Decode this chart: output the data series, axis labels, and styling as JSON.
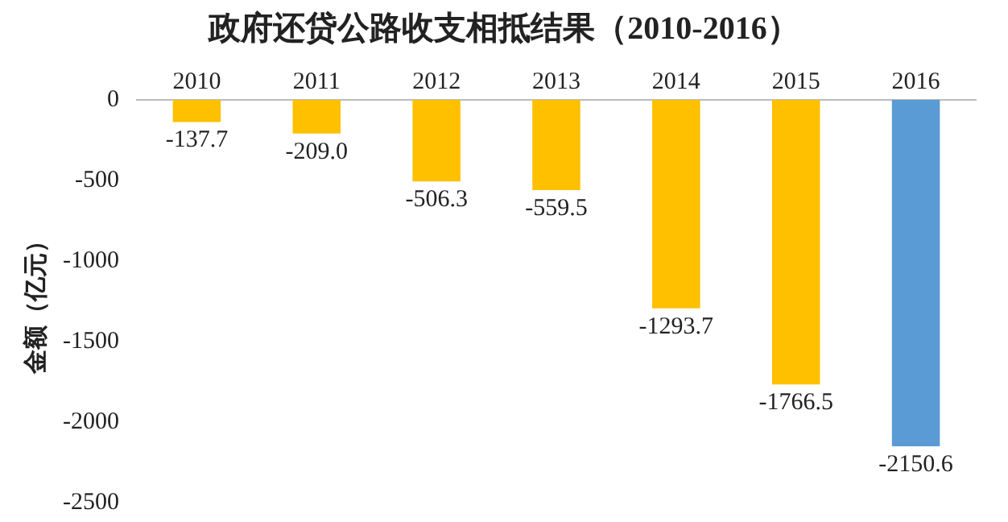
{
  "chart_data": {
    "type": "bar",
    "title": "政府还贷公路收支相抵结果（2010-2016）",
    "ylabel": "金额（亿元）",
    "categories": [
      "2010",
      "2011",
      "2012",
      "2013",
      "2014",
      "2015",
      "2016"
    ],
    "values": [
      -137.7,
      -209.0,
      -506.3,
      -559.5,
      -1293.7,
      -1766.5,
      -2150.6
    ],
    "colors": [
      "#ffc000",
      "#ffc000",
      "#ffc000",
      "#ffc000",
      "#ffc000",
      "#ffc000",
      "#5b9bd5"
    ],
    "value_labels": [
      "-137.7",
      "-209.0",
      "-506.3",
      "-559.5",
      "-1293.7",
      "-1766.5",
      "-2150.6"
    ],
    "ylim": [
      -2500,
      0
    ],
    "yticks": [
      0,
      -500,
      -1000,
      -1500,
      -2000,
      -2500
    ],
    "grid": false,
    "legend": false
  }
}
